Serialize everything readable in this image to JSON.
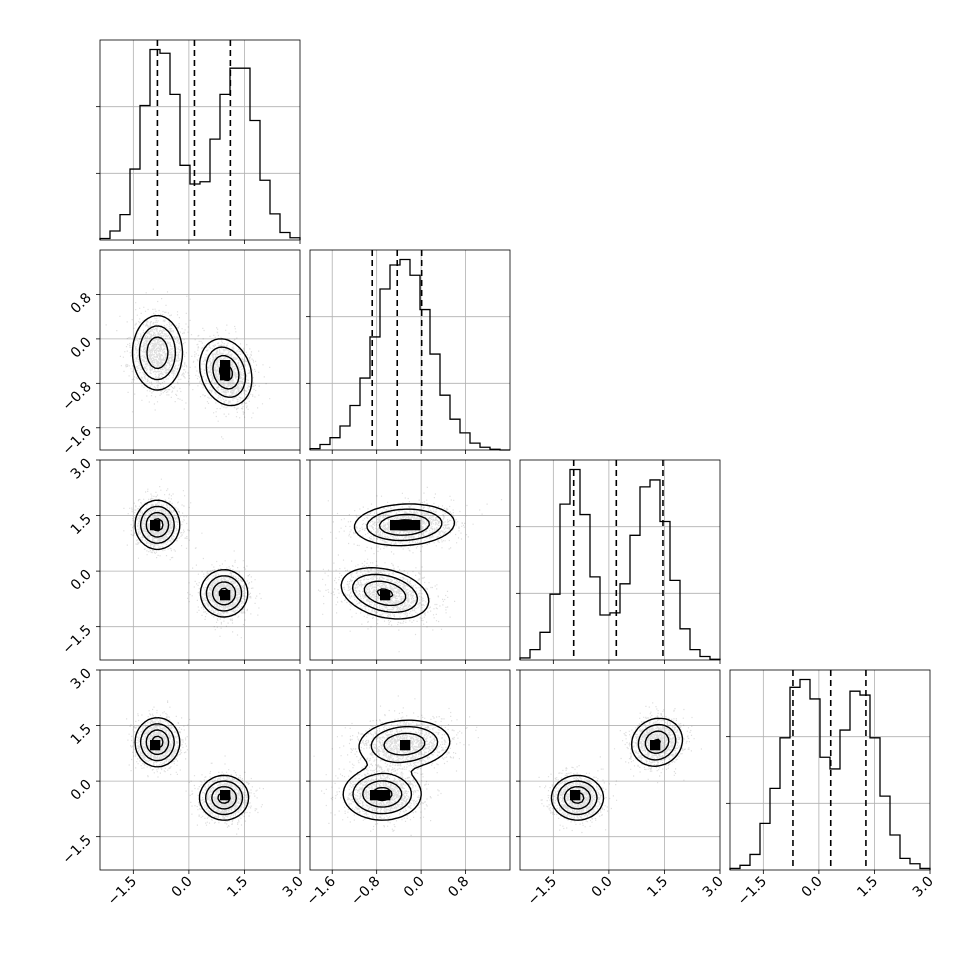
{
  "chart_data": {
    "type": "corner",
    "title": "",
    "n_params": 4,
    "param_labels": [
      "",
      "",
      "",
      ""
    ],
    "ranges": [
      [
        -2.4,
        3.0
      ],
      [
        -2.0,
        1.6
      ],
      [
        -2.4,
        3.0
      ],
      [
        -2.4,
        3.0
      ]
    ],
    "ticks": [
      [
        -1.5,
        0.0,
        1.5,
        3.0
      ],
      [
        -1.6,
        -0.8,
        0.0,
        0.8
      ],
      [
        -1.5,
        0.0,
        1.5,
        3.0
      ],
      [
        -1.5,
        0.0,
        1.5,
        3.0
      ]
    ],
    "tick_labels": [
      [
        "−1.5",
        "0.0",
        "1.5",
        "3.0"
      ],
      [
        "−1.6",
        "−0.8",
        "0.0",
        "0.8"
      ],
      [
        "−1.5",
        "0.0",
        "1.5",
        "3.0"
      ],
      [
        "−1.5",
        "0.0",
        "1.5",
        "3.0"
      ]
    ],
    "grid": true,
    "histograms": [
      {
        "bin_edges": [
          -2.4,
          -2.13,
          -1.86,
          -1.59,
          -1.32,
          -1.05,
          -0.78,
          -0.51,
          -0.24,
          0.03,
          0.3,
          0.57,
          0.84,
          1.11,
          1.38,
          1.65,
          1.92,
          2.19,
          2.46,
          2.73,
          3.0
        ],
        "counts": [
          0.2,
          1.2,
          3.4,
          9.5,
          18.0,
          25.5,
          25.0,
          19.5,
          10.0,
          7.5,
          7.8,
          13.5,
          19.5,
          23.0,
          23.0,
          16.0,
          8.0,
          3.5,
          1.0,
          0.3
        ],
        "quantiles": [
          -0.85,
          0.15,
          1.12
        ]
      },
      {
        "bin_edges": [
          -2.0,
          -1.82,
          -1.64,
          -1.46,
          -1.28,
          -1.1,
          -0.92,
          -0.74,
          -0.56,
          -0.38,
          -0.2,
          -0.02,
          0.16,
          0.34,
          0.52,
          0.7,
          0.88,
          1.06,
          1.24,
          1.42,
          1.6
        ],
        "counts": [
          0.2,
          0.8,
          1.8,
          3.5,
          6.5,
          10.5,
          16.5,
          23.5,
          27.0,
          27.8,
          25.5,
          20.5,
          14.0,
          8.0,
          4.5,
          2.5,
          1.0,
          0.4,
          0.1,
          0.0
        ],
        "quantiles": [
          -0.88,
          -0.43,
          0.01
        ]
      },
      {
        "bin_edges": [
          -2.4,
          -2.13,
          -1.86,
          -1.59,
          -1.32,
          -1.05,
          -0.78,
          -0.51,
          -0.24,
          0.03,
          0.3,
          0.57,
          0.84,
          1.11,
          1.38,
          1.65,
          1.92,
          2.19,
          2.46,
          2.73,
          3.0
        ],
        "counts": [
          0.3,
          1.5,
          4.0,
          9.5,
          22.5,
          27.5,
          21.0,
          12.0,
          6.5,
          6.8,
          11.0,
          18.0,
          25.0,
          26.0,
          20.0,
          11.5,
          4.5,
          1.5,
          0.5,
          0.1
        ],
        "quantiles": [
          -0.95,
          0.2,
          1.46
        ]
      },
      {
        "bin_edges": [
          -2.4,
          -2.13,
          -1.86,
          -1.59,
          -1.32,
          -1.05,
          -0.78,
          -0.51,
          -0.24,
          0.03,
          0.3,
          0.57,
          0.84,
          1.11,
          1.38,
          1.65,
          1.92,
          2.19,
          2.46,
          2.73,
          3.0
        ],
        "counts": [
          0.2,
          0.6,
          2.0,
          6.0,
          10.5,
          17.0,
          23.5,
          24.5,
          22.0,
          14.5,
          13.0,
          18.0,
          23.0,
          22.5,
          17.0,
          9.5,
          4.5,
          1.5,
          0.8,
          0.2
        ],
        "quantiles": [
          -0.7,
          0.32,
          1.27
        ]
      }
    ],
    "scatter_panels": [
      {
        "row": 1,
        "col": 0,
        "components": [
          {
            "mean": [
              -0.85,
              -0.25
            ],
            "sd": [
              0.35,
              0.35
            ],
            "rho": 0.0,
            "weight": 0.5
          },
          {
            "mean": [
              1.0,
              -0.6
            ],
            "sd": [
              0.35,
              0.3
            ],
            "rho": -0.2,
            "weight": 0.5
          }
        ]
      },
      {
        "row": 2,
        "col": 0,
        "components": [
          {
            "mean": [
              -0.85,
              1.25
            ],
            "sd": [
              0.3,
              0.33
            ],
            "rho": 0.0,
            "weight": 0.5
          },
          {
            "mean": [
              0.95,
              -0.6
            ],
            "sd": [
              0.32,
              0.32
            ],
            "rho": 0.0,
            "weight": 0.5
          }
        ]
      },
      {
        "row": 2,
        "col": 1,
        "components": [
          {
            "mean": [
              -0.3,
              1.25
            ],
            "sd": [
              0.45,
              0.28
            ],
            "rho": 0.1,
            "weight": 0.5
          },
          {
            "mean": [
              -0.65,
              -0.6
            ],
            "sd": [
              0.4,
              0.35
            ],
            "rho": -0.3,
            "weight": 0.5
          }
        ]
      },
      {
        "row": 3,
        "col": 0,
        "components": [
          {
            "mean": [
              -0.85,
              1.05
            ],
            "sd": [
              0.3,
              0.33
            ],
            "rho": 0.0,
            "weight": 0.5
          },
          {
            "mean": [
              0.95,
              -0.45
            ],
            "sd": [
              0.33,
              0.3
            ],
            "rho": 0.0,
            "weight": 0.5
          }
        ]
      },
      {
        "row": 3,
        "col": 1,
        "components": [
          {
            "mean": [
              -0.3,
              1.0
            ],
            "sd": [
              0.42,
              0.33
            ],
            "rho": 0.1,
            "weight": 0.5
          },
          {
            "mean": [
              -0.7,
              -0.35
            ],
            "sd": [
              0.35,
              0.35
            ],
            "rho": 0.0,
            "weight": 0.5
          }
        ]
      },
      {
        "row": 3,
        "col": 2,
        "components": [
          {
            "mean": [
              -0.85,
              -0.45
            ],
            "sd": [
              0.35,
              0.3
            ],
            "rho": 0.0,
            "weight": 0.5
          },
          {
            "mean": [
              1.3,
              1.05
            ],
            "sd": [
              0.35,
              0.33
            ],
            "rho": 0.1,
            "weight": 0.5
          }
        ]
      }
    ],
    "contour_levels": [
      0.5,
      1.0,
      1.5,
      2.0
    ]
  }
}
